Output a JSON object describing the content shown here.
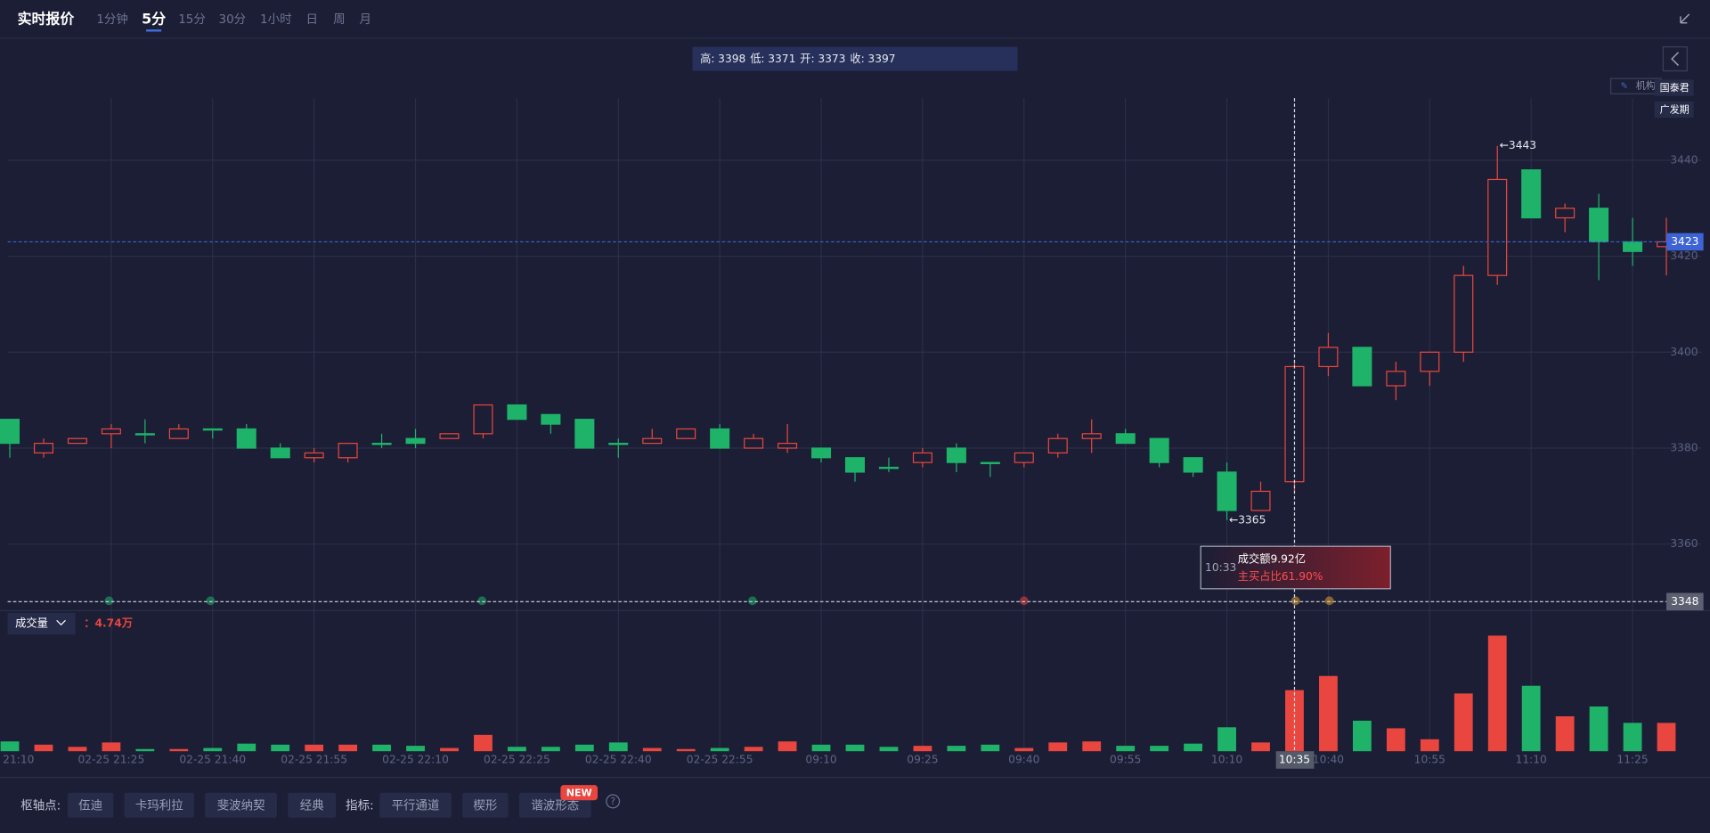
{
  "header": {
    "title": "实时报价",
    "tabs": [
      "1分钟",
      "5分",
      "15分",
      "30分",
      "1小时",
      "日",
      "周",
      "月"
    ],
    "active_tab": 1
  },
  "ohlc_labels": [
    "高:",
    "低:",
    "开:",
    "收:"
  ],
  "side_tags": [
    "机构",
    "国泰君",
    "广发期"
  ],
  "chart_data": [
    {
      "type": "candlestick",
      "categories": [
        "21:10",
        null,
        null,
        "02-25 21:25",
        null,
        null,
        "02-25 21:40",
        null,
        null,
        "02-25 21:55",
        null,
        null,
        "02-25 22:10",
        null,
        null,
        "02-25 22:25",
        null,
        null,
        "02-25 22:40",
        null,
        null,
        "02-25 22:55",
        null,
        null,
        "09:10",
        null,
        null,
        "09:25",
        null,
        null,
        "09:40",
        null,
        null,
        "09:55",
        null,
        null,
        "10:10",
        null,
        null,
        "10:40",
        null,
        null,
        "10:55",
        null,
        null,
        "11:10",
        null,
        null,
        "11:25",
        null
      ],
      "open": [
        3386,
        3379,
        3381,
        3383,
        3383,
        3382,
        3384,
        3384,
        3380,
        3378,
        3378,
        3381,
        3382,
        3382,
        3383,
        3389,
        3387,
        3386,
        3381,
        3381,
        3382,
        3384,
        3380,
        3380,
        3380,
        3378,
        3376,
        3377,
        3380,
        3377,
        3377,
        3379,
        3382,
        3383,
        3382,
        3378,
        3375,
        3367,
        3373,
        3397,
        3401,
        3393,
        3396,
        3400,
        3416,
        3438,
        3428,
        3430,
        3423,
        3422
      ],
      "high": [
        3386,
        3382,
        3382,
        3385,
        3386,
        3385,
        3384,
        3385,
        3381,
        3380,
        3381,
        3383,
        3384,
        3383,
        3389,
        3389,
        3387,
        3386,
        3382,
        3384,
        3384,
        3385,
        3383,
        3385,
        3380,
        3378,
        3378,
        3380,
        3381,
        3377,
        3379,
        3383,
        3386,
        3384,
        3382,
        3378,
        3377,
        3373,
        3398,
        3404,
        3401,
        3398,
        3400,
        3418,
        3443,
        3438,
        3431,
        3433,
        3428,
        3428
      ],
      "low": [
        3378,
        3378,
        3381,
        3380,
        3381,
        3382,
        3382,
        3380,
        3378,
        3377,
        3377,
        3380,
        3380,
        3382,
        3382,
        3386,
        3383,
        3380,
        3378,
        3381,
        3382,
        3380,
        3380,
        3379,
        3377,
        3373,
        3375,
        3376,
        3375,
        3374,
        3376,
        3378,
        3379,
        3381,
        3376,
        3374,
        3365,
        3367,
        3371,
        3395,
        3393,
        3390,
        3393,
        3398,
        3414,
        3428,
        3425,
        3415,
        3418,
        3416
      ],
      "close": [
        3381,
        3381,
        3382,
        3384,
        3383,
        3384,
        3384,
        3380,
        3378,
        3379,
        3381,
        3381,
        3381,
        3383,
        3389,
        3386,
        3385,
        3380,
        3381,
        3382,
        3384,
        3380,
        3382,
        3381,
        3378,
        3375,
        3376,
        3379,
        3377,
        3377,
        3379,
        3382,
        3383,
        3381,
        3377,
        3375,
        3367,
        3371,
        3397,
        3401,
        3393,
        3396,
        3400,
        3416,
        3436,
        3428,
        3430,
        3423,
        3421,
        3423
      ],
      "up_color": "#e8463e",
      "down_color": "#1fb36a",
      "ylim": [
        3346,
        3453
      ],
      "yticks": [
        3360,
        3380,
        3400,
        3420,
        3440
      ],
      "grid": true,
      "current_price": {
        "value": 3423,
        "color": "#3d63d4"
      },
      "crosshair": {
        "index": 38,
        "label": "10:35",
        "price": 3348
      },
      "markers": [
        {
          "index": 44,
          "value": 3443,
          "label": "←3443"
        },
        {
          "index": 36,
          "value": 3365,
          "label": "←3365"
        }
      ],
      "tooltip": {
        "time": "10:33",
        "lines": [
          "成交额9.92亿",
          "主买占比61.90%"
        ]
      }
    },
    {
      "type": "bar",
      "name": "成交量",
      "readout": "：4.74万",
      "values": [
        0.76,
        0.51,
        0.34,
        0.68,
        0.17,
        0.17,
        0.25,
        0.59,
        0.51,
        0.51,
        0.51,
        0.51,
        0.42,
        0.25,
        1.27,
        0.34,
        0.34,
        0.51,
        0.68,
        0.25,
        0.17,
        0.25,
        0.34,
        0.76,
        0.51,
        0.51,
        0.34,
        0.42,
        0.42,
        0.51,
        0.25,
        0.68,
        0.76,
        0.42,
        0.42,
        0.59,
        1.86,
        0.68,
        4.74,
        5.84,
        2.37,
        1.78,
        0.93,
        4.48,
        8.97,
        5.08,
        2.71,
        3.47,
        2.2,
        2.2
      ],
      "ylim": [
        0,
        10
      ]
    }
  ],
  "footer": {
    "pivot_label": "枢轴点:",
    "pivot_buttons": [
      "伍迪",
      "卡玛利拉",
      "斐波纳契",
      "经典"
    ],
    "indicator_label": "指标:",
    "indicator_buttons": [
      "平行通道",
      "楔形",
      "谐波形态"
    ],
    "badge": "NEW",
    "help": "?"
  }
}
